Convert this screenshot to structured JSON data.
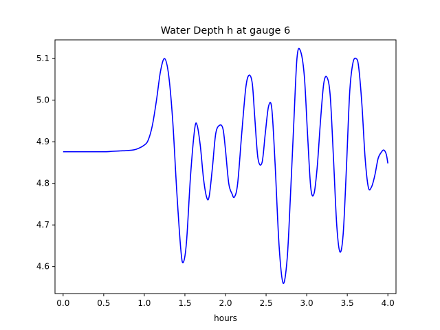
{
  "chart_data": {
    "type": "line",
    "title": "Water Depth h at gauge 6",
    "xlabel": "hours",
    "ylabel": "",
    "xlim": [
      -0.1,
      4.1
    ],
    "ylim": [
      4.535,
      5.145
    ],
    "x_ticks": [
      0.0,
      0.5,
      1.0,
      1.5,
      2.0,
      2.5,
      3.0,
      3.5,
      4.0
    ],
    "x_tick_labels": [
      "0.0",
      "0.5",
      "1.0",
      "1.5",
      "2.0",
      "2.5",
      "3.0",
      "3.5",
      "4.0"
    ],
    "y_ticks": [
      4.6,
      4.7,
      4.8,
      4.9,
      5.0,
      5.1
    ],
    "y_tick_labels": [
      "4.6",
      "4.7",
      "4.8",
      "4.9",
      "5.0",
      "5.1"
    ],
    "grid": false,
    "legend": "none",
    "series": [
      {
        "color": "#0000ff",
        "x": [
          0.0,
          0.5,
          0.6,
          0.7,
          0.8,
          0.9,
          1.0,
          1.05,
          1.1,
          1.15,
          1.2,
          1.25,
          1.3,
          1.35,
          1.4,
          1.45,
          1.48,
          1.52,
          1.57,
          1.62,
          1.65,
          1.69,
          1.73,
          1.77,
          1.8,
          1.84,
          1.88,
          1.93,
          1.97,
          2.0,
          2.04,
          2.08,
          2.11,
          2.15,
          2.2,
          2.25,
          2.29,
          2.33,
          2.36,
          2.4,
          2.45,
          2.49,
          2.53,
          2.57,
          2.61,
          2.66,
          2.71,
          2.76,
          2.8,
          2.84,
          2.88,
          2.92,
          2.97,
          3.01,
          3.05,
          3.09,
          3.13,
          3.17,
          3.21,
          3.25,
          3.29,
          3.33,
          3.37,
          3.41,
          3.45,
          3.49,
          3.53,
          3.57,
          3.61,
          3.64,
          3.68,
          3.72,
          3.76,
          3.8,
          3.84,
          3.88,
          3.92,
          3.95,
          3.98,
          4.0
        ],
        "y": [
          4.876,
          4.876,
          4.877,
          4.878,
          4.879,
          4.882,
          4.892,
          4.905,
          4.94,
          5.0,
          5.07,
          5.1,
          5.06,
          4.95,
          4.78,
          4.64,
          4.61,
          4.66,
          4.82,
          4.93,
          4.94,
          4.89,
          4.81,
          4.765,
          4.77,
          4.84,
          4.92,
          4.94,
          4.93,
          4.88,
          4.8,
          4.775,
          4.767,
          4.8,
          4.92,
          5.03,
          5.06,
          5.04,
          4.96,
          4.86,
          4.85,
          4.92,
          4.985,
          4.98,
          4.85,
          4.65,
          4.56,
          4.62,
          4.77,
          4.94,
          5.1,
          5.12,
          5.06,
          4.92,
          4.79,
          4.775,
          4.84,
          4.95,
          5.04,
          5.055,
          5.01,
          4.86,
          4.7,
          4.635,
          4.68,
          4.84,
          5.02,
          5.09,
          5.1,
          5.08,
          4.99,
          4.86,
          4.79,
          4.792,
          4.82,
          4.86,
          4.875,
          4.88,
          4.87,
          4.848
        ]
      }
    ]
  }
}
